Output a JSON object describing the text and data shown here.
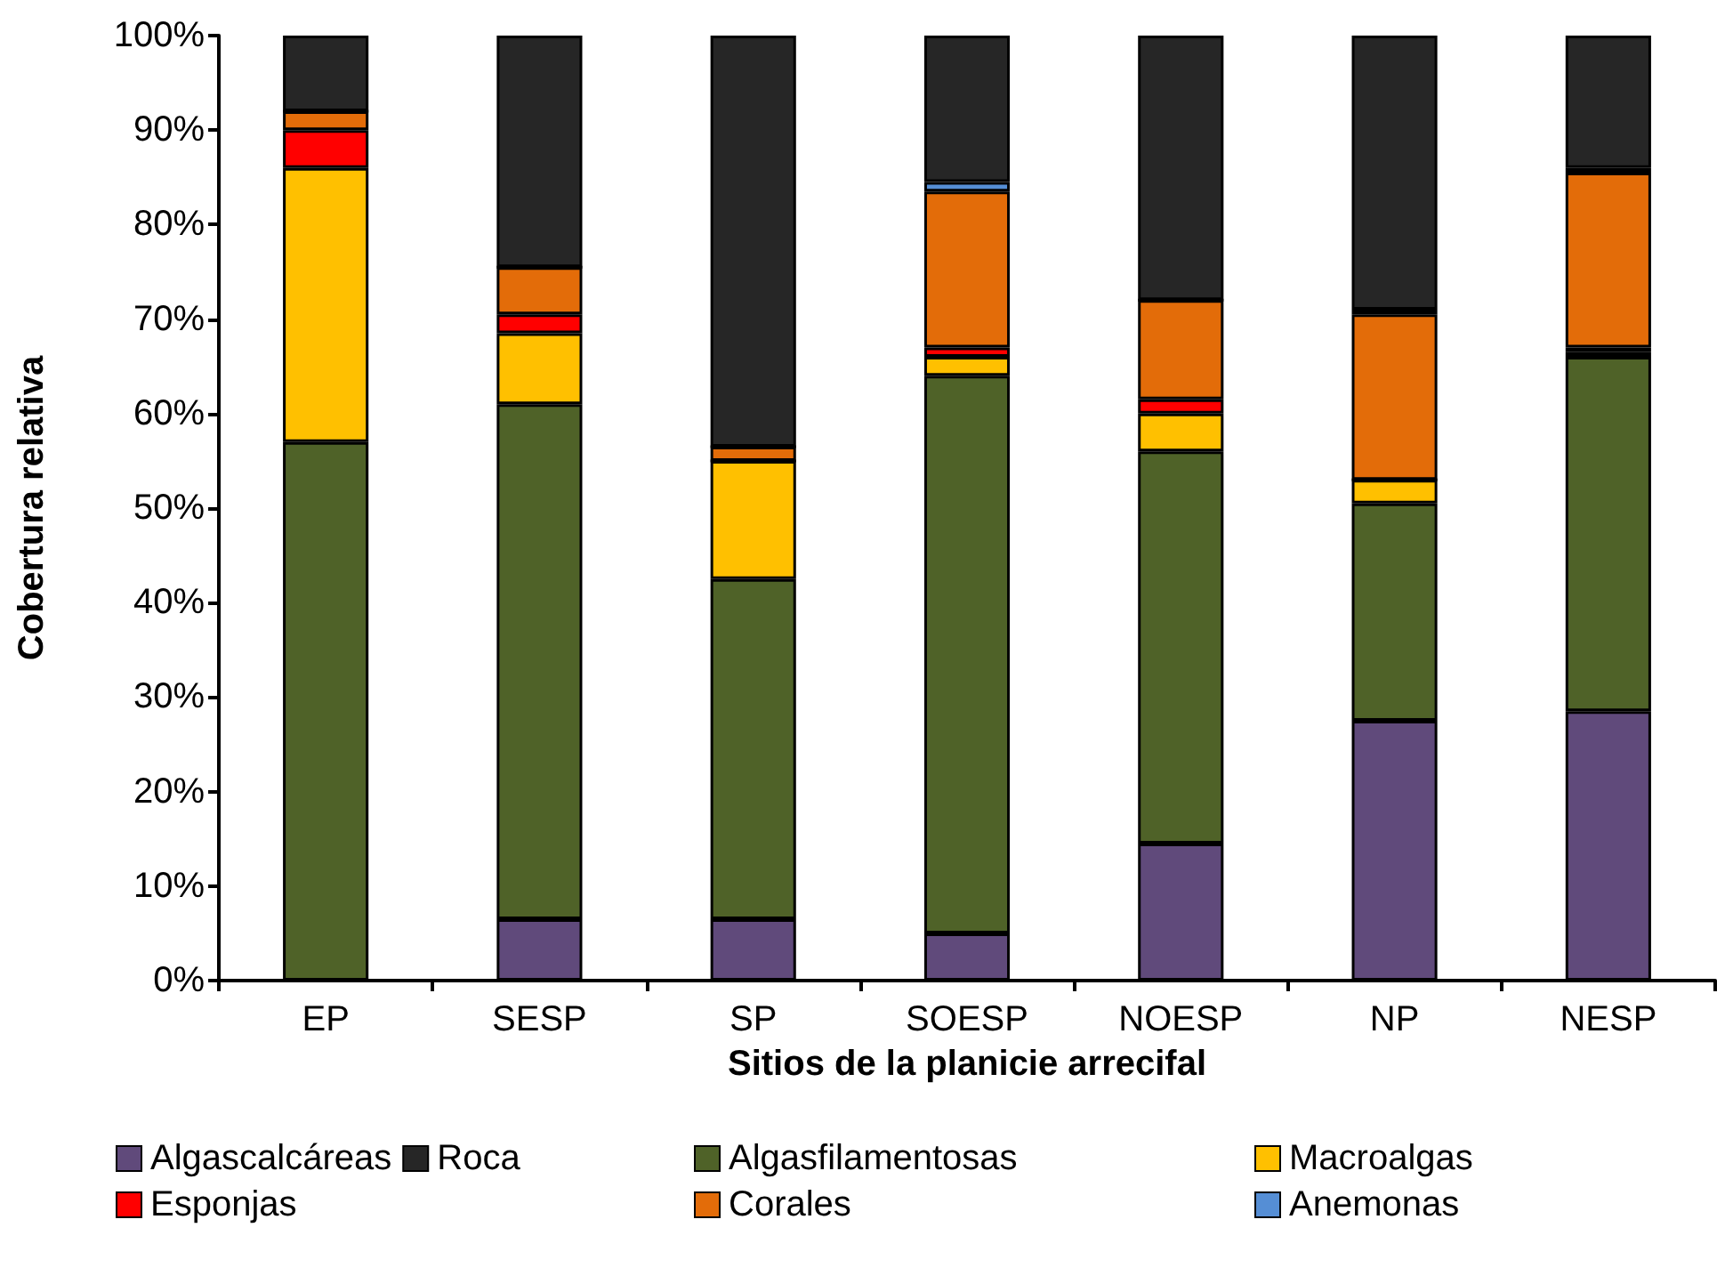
{
  "chart_data": {
    "type": "bar",
    "stacked": true,
    "xlabel": "Sitios de la planicie arrecifal",
    "ylabel": "Cobertura relativa",
    "categories": [
      "EP",
      "SESP",
      "SP",
      "SOESP",
      "NOESP",
      "NP",
      "NESP"
    ],
    "series": [
      {
        "name": "Algascalcáreas",
        "color": "#604a7b",
        "values": [
          0,
          6.5,
          6.5,
          5,
          14.5,
          27.5,
          28.5
        ]
      },
      {
        "name": "Algasfilamentosas",
        "color": "#4f6228",
        "values": [
          57,
          54.5,
          36,
          59,
          41.5,
          23,
          37.5
        ]
      },
      {
        "name": "Macroalgas",
        "color": "#ffc000",
        "values": [
          29,
          7.5,
          12.5,
          2,
          4,
          2.5,
          0.5
        ]
      },
      {
        "name": "Esponjas",
        "color": "#ff0000",
        "values": [
          4,
          2,
          0,
          1,
          1.5,
          0,
          0.5
        ]
      },
      {
        "name": "Corales",
        "color": "#e36c09",
        "values": [
          2,
          5,
          1.5,
          16.5,
          10.5,
          17.5,
          18.5
        ]
      },
      {
        "name": "Anemonas",
        "color": "#558ed5",
        "values": [
          0,
          0,
          0,
          1,
          0,
          0.5,
          0.5
        ]
      },
      {
        "name": "Roca",
        "color": "#262626",
        "values": [
          8,
          24.5,
          43.5,
          15.5,
          28,
          29,
          14
        ]
      }
    ],
    "ylim": [
      0,
      100
    ],
    "yticks": [
      {
        "value": 0,
        "label": "0%"
      },
      {
        "value": 10,
        "label": "10%"
      },
      {
        "value": 20,
        "label": "20%"
      },
      {
        "value": 30,
        "label": "30%"
      },
      {
        "value": 40,
        "label": "40%"
      },
      {
        "value": 50,
        "label": "50%"
      },
      {
        "value": 60,
        "label": "60%"
      },
      {
        "value": 70,
        "label": "70%"
      },
      {
        "value": 80,
        "label": "80%"
      },
      {
        "value": 90,
        "label": "90%"
      },
      {
        "value": 100,
        "label": "100%"
      }
    ],
    "grid": false,
    "legend": "bottom"
  }
}
